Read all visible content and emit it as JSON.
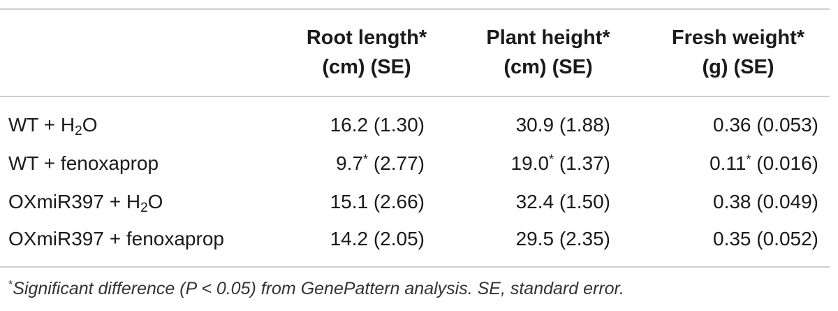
{
  "table": {
    "headers": [
      {
        "line1": "Root length*",
        "line2": "(cm) (SE)"
      },
      {
        "line1": "Plant height*",
        "line2": "(cm) (SE)"
      },
      {
        "line1": "Fresh weight*",
        "line2": "(g) (SE)"
      }
    ],
    "rows": [
      {
        "name_pre": "WT + H",
        "name_sub": "2",
        "name_post": "O",
        "values": [
          {
            "main": "16.2",
            "star": "",
            "se": " (1.30)"
          },
          {
            "main": "30.9",
            "star": "",
            "se": " (1.88)"
          },
          {
            "main": "0.36",
            "star": "",
            "se": " (0.053)"
          }
        ]
      },
      {
        "name_pre": "WT + fenoxaprop",
        "name_sub": "",
        "name_post": "",
        "values": [
          {
            "main": "9.7",
            "star": "*",
            "se": " (2.77)"
          },
          {
            "main": "19.0",
            "star": "*",
            "se": " (1.37)"
          },
          {
            "main": "0.11",
            "star": "*",
            "se": " (0.016)"
          }
        ]
      },
      {
        "name_pre": "OXmiR397 + H",
        "name_sub": "2",
        "name_post": "O",
        "values": [
          {
            "main": "15.1",
            "star": "",
            "se": " (2.66)"
          },
          {
            "main": "32.4",
            "star": "",
            "se": " (1.50)"
          },
          {
            "main": "0.38",
            "star": "",
            "se": " (0.049)"
          }
        ]
      },
      {
        "name_pre": "OXmiR397 + fenoxaprop",
        "name_sub": "",
        "name_post": "",
        "values": [
          {
            "main": "14.2",
            "star": "",
            "se": " (2.05)"
          },
          {
            "main": "29.5",
            "star": "",
            "se": " (2.35)"
          },
          {
            "main": "0.35",
            "star": "",
            "se": " (0.052)"
          }
        ]
      }
    ]
  },
  "footnote": {
    "marker": "*",
    "text": "Significant difference (P < 0.05) from GenePattern analysis. SE, standard error."
  }
}
